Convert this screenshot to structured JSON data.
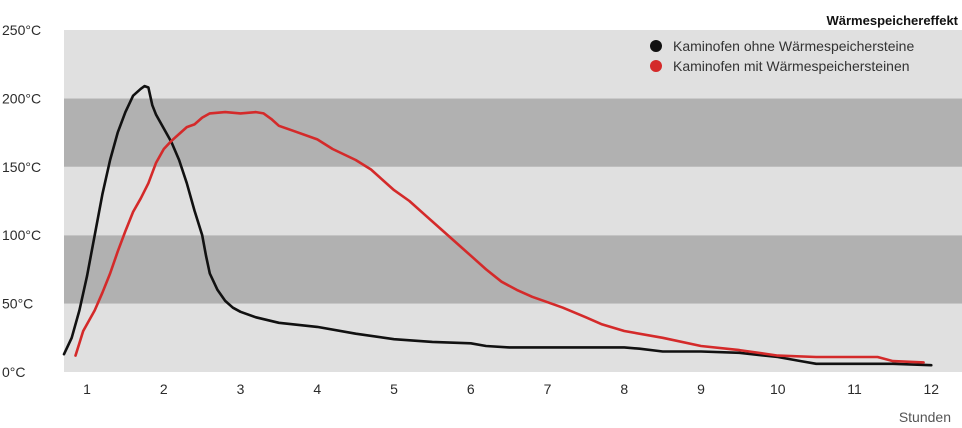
{
  "chart_data": {
    "type": "line",
    "title": "Wärmespeichereffekt",
    "xlabel": "Stunden",
    "ylabel": "",
    "x_ticks": [
      "1",
      "2",
      "3",
      "4",
      "5",
      "6",
      "7",
      "8",
      "9",
      "10",
      "11",
      "12"
    ],
    "y_ticks": [
      "0°C",
      "50°C",
      "100°C",
      "150°C",
      "200°C",
      "250°C"
    ],
    "xlim": [
      0.7,
      12.4
    ],
    "ylim": [
      0,
      250
    ],
    "legend_position": "top-right",
    "bands": [
      {
        "from": 0,
        "to": 50,
        "color": "#e0e0e0"
      },
      {
        "from": 50,
        "to": 100,
        "color": "#b1b1b1"
      },
      {
        "from": 100,
        "to": 150,
        "color": "#e0e0e0"
      },
      {
        "from": 150,
        "to": 200,
        "color": "#b1b1b1"
      },
      {
        "from": 200,
        "to": 250,
        "color": "#e0e0e0"
      }
    ],
    "series": [
      {
        "name": "Kaminofen ohne Wärmespeichersteine",
        "color": "#111111",
        "points": [
          [
            0.7,
            13
          ],
          [
            0.8,
            25
          ],
          [
            0.9,
            45
          ],
          [
            1.0,
            70
          ],
          [
            1.1,
            100
          ],
          [
            1.2,
            130
          ],
          [
            1.3,
            155
          ],
          [
            1.4,
            175
          ],
          [
            1.5,
            190
          ],
          [
            1.6,
            202
          ],
          [
            1.7,
            207
          ],
          [
            1.75,
            209
          ],
          [
            1.8,
            208
          ],
          [
            1.85,
            195
          ],
          [
            1.9,
            188
          ],
          [
            2.0,
            178
          ],
          [
            2.1,
            168
          ],
          [
            2.2,
            155
          ],
          [
            2.3,
            138
          ],
          [
            2.4,
            118
          ],
          [
            2.5,
            100
          ],
          [
            2.55,
            85
          ],
          [
            2.6,
            72
          ],
          [
            2.7,
            60
          ],
          [
            2.8,
            52
          ],
          [
            2.9,
            47
          ],
          [
            3.0,
            44
          ],
          [
            3.2,
            40
          ],
          [
            3.5,
            36
          ],
          [
            4.0,
            33
          ],
          [
            4.5,
            28
          ],
          [
            5.0,
            24
          ],
          [
            5.5,
            22
          ],
          [
            6.0,
            21
          ],
          [
            6.2,
            19
          ],
          [
            6.5,
            18
          ],
          [
            7.0,
            18
          ],
          [
            7.5,
            18
          ],
          [
            8.0,
            18
          ],
          [
            8.2,
            17
          ],
          [
            8.5,
            15
          ],
          [
            9.0,
            15
          ],
          [
            9.5,
            14
          ],
          [
            10.0,
            11
          ],
          [
            10.3,
            8
          ],
          [
            10.5,
            6
          ],
          [
            11.0,
            6
          ],
          [
            11.5,
            6
          ],
          [
            12.0,
            5
          ]
        ]
      },
      {
        "name": "Kaminofen mit Wärmespeichersteinen",
        "color": "#d42a2a",
        "points": [
          [
            0.85,
            12
          ],
          [
            0.95,
            30
          ],
          [
            1.1,
            45
          ],
          [
            1.2,
            58
          ],
          [
            1.3,
            72
          ],
          [
            1.4,
            88
          ],
          [
            1.5,
            103
          ],
          [
            1.6,
            117
          ],
          [
            1.7,
            127
          ],
          [
            1.8,
            138
          ],
          [
            1.9,
            153
          ],
          [
            2.0,
            163
          ],
          [
            2.1,
            169
          ],
          [
            2.2,
            174
          ],
          [
            2.3,
            179
          ],
          [
            2.4,
            181
          ],
          [
            2.5,
            186
          ],
          [
            2.6,
            189
          ],
          [
            2.8,
            190
          ],
          [
            3.0,
            189
          ],
          [
            3.2,
            190
          ],
          [
            3.3,
            189
          ],
          [
            3.4,
            185
          ],
          [
            3.5,
            180
          ],
          [
            3.7,
            176
          ],
          [
            4.0,
            170
          ],
          [
            4.2,
            163
          ],
          [
            4.5,
            155
          ],
          [
            4.7,
            148
          ],
          [
            5.0,
            133
          ],
          [
            5.2,
            125
          ],
          [
            5.4,
            115
          ],
          [
            5.6,
            105
          ],
          [
            5.8,
            95
          ],
          [
            6.0,
            85
          ],
          [
            6.2,
            75
          ],
          [
            6.4,
            66
          ],
          [
            6.6,
            60
          ],
          [
            6.8,
            55
          ],
          [
            7.0,
            51
          ],
          [
            7.2,
            47
          ],
          [
            7.5,
            40
          ],
          [
            7.7,
            35
          ],
          [
            8.0,
            30
          ],
          [
            8.5,
            25
          ],
          [
            9.0,
            19
          ],
          [
            9.5,
            16
          ],
          [
            10.0,
            12
          ],
          [
            10.5,
            11
          ],
          [
            11.0,
            11
          ],
          [
            11.3,
            11
          ],
          [
            11.5,
            8
          ],
          [
            11.9,
            7
          ]
        ]
      }
    ]
  }
}
